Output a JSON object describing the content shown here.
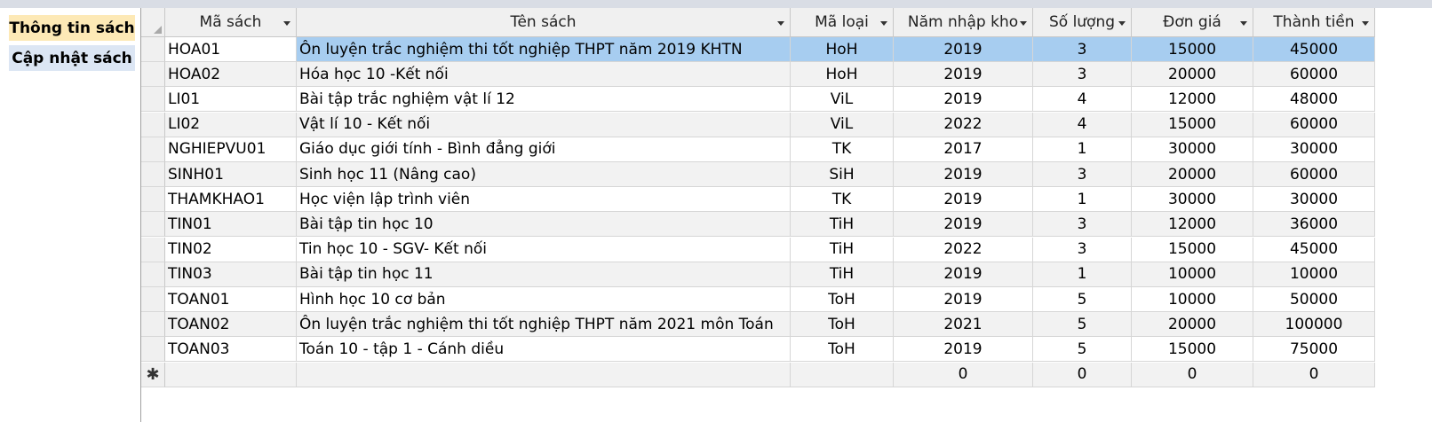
{
  "nav": {
    "info_label": "Thông tin sách",
    "update_label": "Cập nhật sách"
  },
  "table": {
    "columns": [
      "Mã sách",
      "Tên sách",
      "Mã loại",
      "Năm nhập kho",
      "Số lượng",
      "Đơn giá",
      "Thành tiền"
    ],
    "rows": [
      [
        "HOA01",
        "Ôn luyện trắc nghiệm thi tốt nghiệp THPT năm 2019 KHTN",
        "HoH",
        "2019",
        "3",
        "15000",
        "45000"
      ],
      [
        "HOA02",
        "Hóa học 10 -Kết nối",
        "HoH",
        "2019",
        "3",
        "20000",
        "60000"
      ],
      [
        "LI01",
        "Bài tập trắc nghiệm vật lí 12",
        "ViL",
        "2019",
        "4",
        "12000",
        "48000"
      ],
      [
        "LI02",
        "Vật lí 10 - Kết nối",
        "ViL",
        "2022",
        "4",
        "15000",
        "60000"
      ],
      [
        "NGHIEPVU01",
        "Giáo dục giới tính - Bình đẳng giới",
        "TK",
        "2017",
        "1",
        "30000",
        "30000"
      ],
      [
        "SINH01",
        "Sinh học 11 (Nâng cao)",
        "SiH",
        "2019",
        "3",
        "20000",
        "60000"
      ],
      [
        "THAMKHAO1",
        "Học viện lập trình viên",
        "TK",
        "2019",
        "1",
        "30000",
        "30000"
      ],
      [
        "TIN01",
        "Bài tập tin học 10",
        "TiH",
        "2019",
        "3",
        "12000",
        "36000"
      ],
      [
        "TIN02",
        "Tin học 10 - SGV- Kết nối",
        "TiH",
        "2022",
        "3",
        "15000",
        "45000"
      ],
      [
        "TIN03",
        "Bài tập tin học 11",
        "TiH",
        "2019",
        "1",
        "10000",
        "10000"
      ],
      [
        "TOAN01",
        "Hình học 10 cơ bản",
        "ToH",
        "2019",
        "5",
        "10000",
        "50000"
      ],
      [
        "TOAN02",
        "Ôn luyện trắc nghiệm thi tốt nghiệp THPT năm 2021 môn Toán",
        "ToH",
        "2021",
        "5",
        "20000",
        "100000"
      ],
      [
        "TOAN03",
        "Toán 10 - tập 1 - Cánh diều",
        "ToH",
        "2019",
        "5",
        "15000",
        "75000"
      ]
    ],
    "new_row": [
      "",
      "",
      "",
      "0",
      "0",
      "0",
      "0"
    ],
    "new_row_marker": "✱",
    "selected_row": 0
  },
  "colors": {
    "selected_row": "#a7cdf0",
    "alt_row": "#f2f2f2",
    "header_bg": "#f0f0f0",
    "nav_info_bg": "#fde9b6",
    "nav_update_bg": "#dce6f4"
  }
}
